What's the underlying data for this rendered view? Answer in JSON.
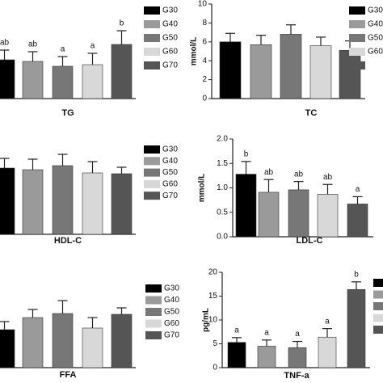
{
  "chart_data": [
    {
      "type": "bar",
      "title": "TG",
      "categories": [
        "G30",
        "G40",
        "G50",
        "G60",
        "G70"
      ],
      "colors": [
        "#000000",
        "#9a9a9a",
        "#777777",
        "#d8d8d8",
        "#555555"
      ],
      "values": [
        48,
        46,
        40,
        42,
        67
      ],
      "errors": [
        12,
        12,
        12,
        14,
        17
      ],
      "annotations": [
        "ab",
        "ab",
        "a",
        "a",
        "b"
      ],
      "ylim": [
        0,
        100
      ],
      "legend": true
    },
    {
      "type": "bar",
      "title": "TC",
      "ylabel": "mmol/L",
      "categories": [
        "G30",
        "G40",
        "G50",
        "G60",
        null
      ],
      "colors": [
        "#000000",
        "#9a9a9a",
        "#777777",
        "#d8d8d8",
        "#555555"
      ],
      "values": [
        6.0,
        5.7,
        6.8,
        5.6,
        5.1
      ],
      "errors": [
        0.9,
        1.0,
        1.0,
        0.9,
        1.0
      ],
      "ylim": [
        0,
        10
      ],
      "yticks": [
        0,
        2,
        4,
        6,
        8,
        10
      ],
      "legend": true
    },
    {
      "type": "bar",
      "title": "HDL-C",
      "categories": [
        "G30",
        "G40",
        "G50",
        "G60",
        "G70"
      ],
      "colors": [
        "#000000",
        "#9a9a9a",
        "#777777",
        "#d8d8d8",
        "#555555"
      ],
      "values": [
        82,
        80,
        85,
        76,
        75
      ],
      "errors": [
        12,
        13,
        14,
        14,
        8
      ],
      "ylim": [
        0,
        100
      ],
      "legend": true
    },
    {
      "type": "bar",
      "title": "LDL-C",
      "ylabel": "mmol/L",
      "colors": [
        "#000000",
        "#9a9a9a",
        "#777777",
        "#d8d8d8",
        "#555555"
      ],
      "values": [
        1.28,
        0.91,
        0.96,
        0.87,
        0.67
      ],
      "errors": [
        0.26,
        0.26,
        0.17,
        0.2,
        0.15
      ],
      "annotations": [
        "b",
        "ab",
        "ab",
        "ab",
        "a"
      ],
      "ylim": [
        0,
        2
      ],
      "yticks": [
        {
          "value": 0,
          "label": "0.0"
        },
        {
          "value": 0.5,
          "label": "0.5"
        },
        {
          "value": 1,
          "label": "1.0"
        },
        {
          "value": 1.5,
          "label": "1.5"
        },
        {
          "value": 2,
          "label": "2.0"
        }
      ],
      "legend": false
    },
    {
      "type": "bar",
      "title": "FFA",
      "categories": [
        "G30",
        "G40",
        "G50",
        "G60",
        "G70"
      ],
      "colors": [
        "#000000",
        "#9a9a9a",
        "#777777",
        "#d8d8d8",
        "#555555"
      ],
      "values": [
        47,
        62,
        67,
        49,
        66
      ],
      "errors": [
        10,
        10,
        16,
        13,
        8
      ],
      "ylim": [
        0,
        100
      ],
      "legend": true
    },
    {
      "type": "bar",
      "title": "TNF-a",
      "ylabel": "pg/mL",
      "categories": [
        null,
        null,
        null,
        null,
        null
      ],
      "colors": [
        "#000000",
        "#9a9a9a",
        "#777777",
        "#d8d8d8",
        "#555555"
      ],
      "values": [
        5.3,
        4.5,
        4.2,
        6.4,
        16.4
      ],
      "errors": [
        1.0,
        1.3,
        1.3,
        1.8,
        1.6
      ],
      "annotations": [
        "a",
        "a",
        "a",
        "a",
        "b"
      ],
      "ylim": [
        0,
        20
      ],
      "yticks": [
        0,
        5,
        10,
        15,
        20
      ],
      "legend": true
    }
  ]
}
